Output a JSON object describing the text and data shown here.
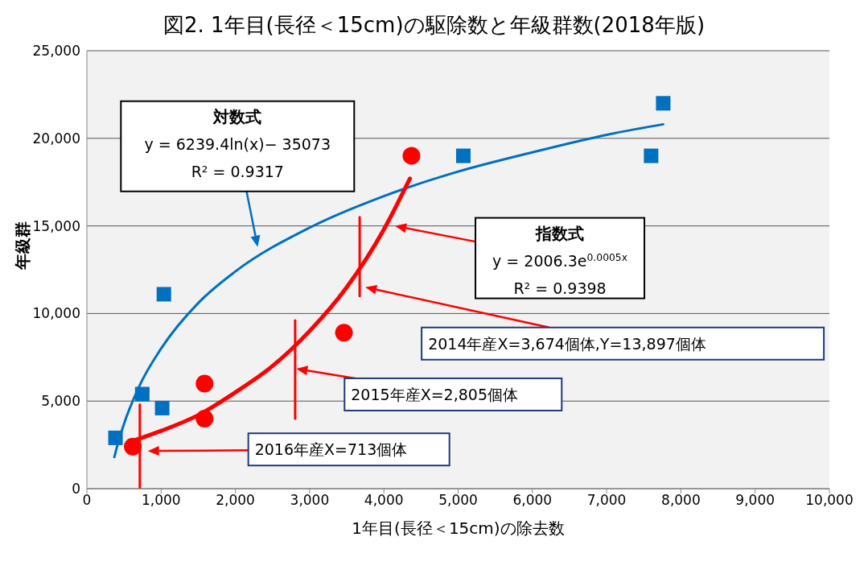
{
  "chart_data": {
    "type": "scatter",
    "title": "図2. 1年目(長径＜15cm)の駆除数と年級群数(2018年版)",
    "xlabel": "1年目(長径＜15cm)の除去数",
    "ylabel": "年級群",
    "xlim": [
      0,
      10000
    ],
    "xticks": [
      0,
      {
        "value": 1000,
        "label": "1,000"
      },
      {
        "value": 2000,
        "label": "2,000"
      },
      {
        "value": 3000,
        "label": "3,000"
      },
      {
        "value": 4000,
        "label": "4,000"
      },
      {
        "value": 5000,
        "label": "5,000"
      },
      {
        "value": 6000,
        "label": "6,000"
      },
      {
        "value": 7000,
        "label": "7,000"
      },
      {
        "value": 8000,
        "label": "8,000"
      },
      {
        "value": 9000,
        "label": "9,000"
      },
      {
        "value": 10000,
        "label": "10,000"
      }
    ],
    "ylim": [
      0,
      25000
    ],
    "yticks": [
      0,
      {
        "value": 5000,
        "label": "5,000"
      },
      {
        "value": 10000,
        "label": "10,000"
      },
      {
        "value": 15000,
        "label": "15,000"
      },
      {
        "value": 20000,
        "label": "20,000"
      },
      {
        "value": 25000,
        "label": "25,000"
      }
    ],
    "grid": "y",
    "legend": false,
    "series": [
      {
        "color": "#0070c0",
        "marker": "square",
        "x": [
          385,
          746,
          1014,
          1037,
          5070,
          7599,
          7762
        ],
        "values": [
          2900,
          5400,
          4600,
          11100,
          19000,
          19000,
          22000
        ]
      },
      {
        "color": "#ff0000",
        "marker": "circle",
        "x": [
          618,
          1585,
          1585,
          3462,
          4371
        ],
        "values": [
          2400,
          6000,
          4000,
          8900,
          19000
        ]
      },
      {
        "type": "line",
        "color": "#0070c0",
        "marker": "none",
        "x": [
          370,
          400,
          500,
          700,
          1000,
          1500,
          2000,
          3000,
          4000,
          5000,
          6000,
          7000,
          7762
        ],
        "values": [
          1800,
          2300,
          3700,
          5800,
          8000,
          10600,
          12400,
          14900,
          16700,
          18100,
          19200,
          20200,
          20800
        ]
      },
      {
        "type": "line",
        "color": "#ff0000",
        "marker": "none",
        "x": [
          600,
          1000,
          1500,
          2000,
          2500,
          3000,
          3500,
          4000,
          4350
        ],
        "values": [
          2700,
          3300,
          4200,
          5500,
          7000,
          9000,
          11500,
          14800,
          17700
        ]
      },
      {
        "type": "line",
        "color": "#ff0000",
        "marker": "none",
        "x": [
          713,
          713
        ],
        "values": [
          0,
          4800
        ]
      },
      {
        "type": "line",
        "color": "#ff0000",
        "marker": "none",
        "x": [
          2805,
          2805
        ],
        "values": [
          4000,
          9600
        ]
      },
      {
        "type": "line",
        "color": "#ff0000",
        "marker": "none",
        "x": [
          3674,
          3674
        ],
        "values": [
          11000,
          15500
        ]
      }
    ],
    "annotations": [
      "対数式\ny = 6239.4ln(x)− 35073\nR² = 0.9317",
      "指数式\ny = 2006.3e$^{0.0005x}$\nR² = 0.9398",
      "2014年産X=3,674個体,Y=13,897個体",
      "2015年産X=2,805個体",
      "2016年産X=713個体"
    ]
  }
}
